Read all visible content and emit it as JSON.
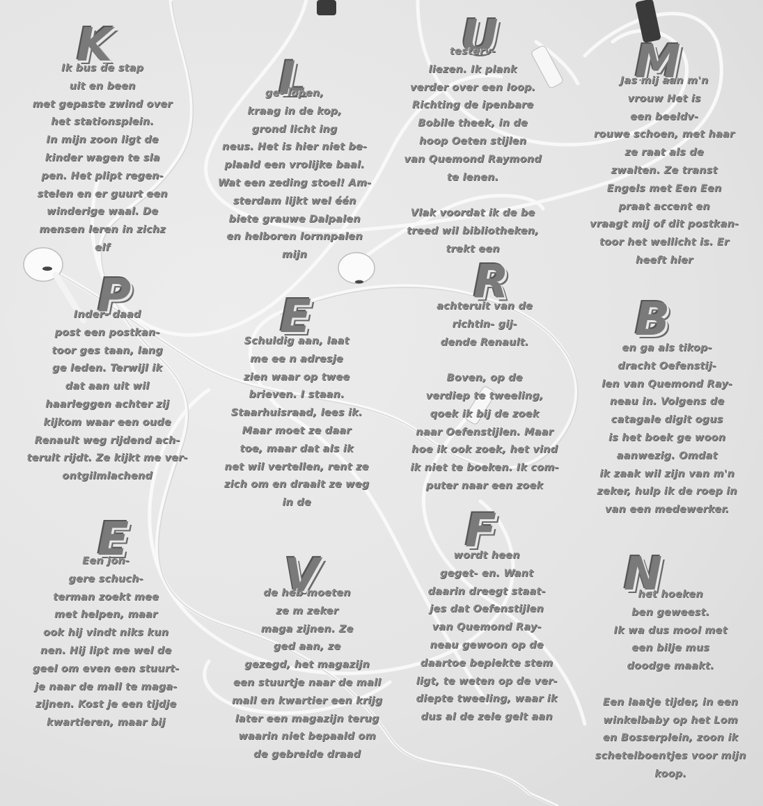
{
  "letters": [
    "K",
    "L",
    "U",
    "M",
    "P",
    "E",
    "R",
    "B",
    "E",
    "V",
    "F",
    "N"
  ],
  "blocks": [
    "Ik bus                    de stap\nuit en                          been\nmet gepaste zwind over\nhet                stationsplein.\nIn mijn zoon ligt                  de\nkinder               wagen te sla\npen.          Het plipt regen-\nstelen     en er guurt    een\nwinderige waal. De\nmensen leren  in zichz\nelf",
    "ge-                          lopen,\nkraag in                de kop,\ngrond licht              ing\nneus. Het is hier      niet be-\nplaald een vrolijke baal.\nWat een zeding stoel! Am-\nsterdam lijkt wel één\nbiete grauwe Dalpalen\nen helboren lornnpalen\nmijn",
    "testerv-\nliezen. Ik                  plank\nverder over       een loop.\nRichting           de ipenbare\nBobile                theek, in de\nhoop Oeten            stijlen\nvan Quemond Raymond\nte lenen.\n\nVlak voordat ik de be\ntreed wil bibliotheken,\ntrekt een",
    "Jas mij                     aan m'n\nvrouw                          Het is\neen                          beeldv-\nrouwe schoen, met haar\nze raat                        als de\nzwalten.                 Ze transt\nEngels met               Een Een\npraat                   accent en\nvraagt mij of dit postkan-\ntoor het wellicht is. Er\nheeft hier",
    "Inder-                    daad\npost een               postkan-\ntoor ges               taan, lang\nge                leden. Terwijl ik\ndat             aan uit wil\nhaarleggen        achter zij\nkijkom waar een oude\nRenault weg rijdend ach-\nterult rijdt. Ze kijkt me ver-\nontgilmlachend",
    "Schuldig                  aan, laat\nme ee  n                    adresje\nzien waar  op twee\nbrieven.             I  staan.\nStaarhuisraad,          lees ik.\nMaar moet ze daar\ntoe, maar dat als ik\nnet wil vertellen, rent ze\nzich om en draait ze weg\nin de",
    "achteruit                   van de\nrichtin-                         gij-\ndende Renault.\n\nBoven,                          op de\nverdiep                    te tweeling,\nqoek ik               bij de zoek\nnaar Oefenstijlen. Maar\nhoe ik ook zoek, het vind\nik niet te boeken. Ik com-\nputer naar een zoek",
    "en ga                   als tikop-\ndracht                   Oefenstij-\nlen van Quemond Ray-\nneau in. Volgens           de\ncatagale digit              ogus\nis het boek ge            woon\naanwezig.                 Omdat\nik zaak wil zijn van m'n\nzeker, hulp ik de roep in\nvan een medewerker.",
    "Een jon-\ngere                    schuch-\nterman zoekt           mee\nmet               helpen, maar\nook hij vindt niks kun\nnen. Hij lipt me wel de\ngeel om even een stuurt-\nje naar de mall te maga-\nzijnen. Kost je een tijdje\nkwartieren, maar bij",
    "de heb                         moeten\nze  m                          zeker\nmaga                   zijnen. Ze\nged                        aan, ze\ngezegd, het  magazijn\neen stuurtje naar de mall\nmall en kwartier een krijg\nlater een magazijn terug\nwaarin niet bepaald om\nde gebreide draad",
    "wordt                       heen\ngeget-                        en. Want\ndaarin dreegt              staat-\njes dat         Oefenstijlen\nvan Quemond            Ray-\nneau gewoon op de\ndaartoe bepiekte stem\nligt, te weten op de ver-\ndiepte tweeling, waar ik\ndus al de zele gelt aan",
    "het                               hoeken\nben                         geweest.\nIk wa               dus mool met\neen                     bilje mus\ndoodge maakt.\n\nEen laatje tijder, in een\nwinkelbaby op het Lom\nen Bosserplein, zoon ik\nschetelboentjes voor mijn\nkoop."
  ]
}
